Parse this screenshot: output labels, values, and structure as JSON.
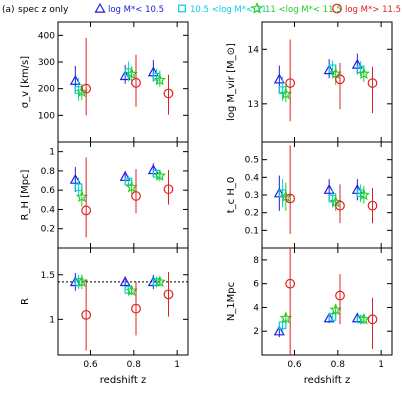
{
  "header": {
    "tag": "(a)",
    "title": "spec z only"
  },
  "legend": [
    {
      "label": "log M*< 10.5",
      "color": "#2020e0",
      "marker": "triangle"
    },
    {
      "label": "10.5 <log M*< 11",
      "color": "#00d0e0",
      "marker": "square"
    },
    {
      "label": "11 <log M*< 11.5",
      "color": "#20d020",
      "marker": "star"
    },
    {
      "label": "log M*> 11.5",
      "color": "#e02020",
      "marker": "circle"
    }
  ],
  "chart_data": [
    {
      "type": "scatter",
      "panel": "sigma_v",
      "xlabel": "",
      "ylabel": "σ_v [km/s]",
      "xlim": [
        0.45,
        1.05
      ],
      "ylim": [
        0,
        450
      ],
      "yticks": [
        100,
        200,
        300,
        400
      ],
      "series": [
        {
          "name": "log M*< 10.5",
          "x": [
            0.53,
            0.76,
            0.89
          ],
          "y": [
            230,
            248,
            262
          ],
          "err_lo": [
            45,
            30,
            35
          ],
          "err_hi": [
            55,
            40,
            45
          ]
        },
        {
          "name": "10.5 <log M*< 11",
          "x": [
            0.545,
            0.775,
            0.905
          ],
          "y": [
            195,
            262,
            245
          ],
          "err_lo": [
            40,
            35,
            30
          ],
          "err_hi": [
            45,
            40,
            30
          ]
        },
        {
          "name": "11 <log M*< 11.5",
          "x": [
            0.56,
            0.79,
            0.92
          ],
          "y": [
            188,
            255,
            232
          ],
          "err_lo": [
            30,
            40,
            25
          ],
          "err_hi": [
            30,
            30,
            35
          ]
        },
        {
          "name": "log M*> 11.5",
          "x": [
            0.58,
            0.81,
            0.96
          ],
          "y": [
            200,
            222,
            182
          ],
          "err_lo": [
            100,
            90,
            80
          ],
          "err_hi": [
            190,
            105,
            70
          ]
        }
      ]
    },
    {
      "type": "scatter",
      "panel": "log_Mvir",
      "xlabel": "",
      "ylabel": "log M_vir [M_⊙]",
      "xlim": [
        0.45,
        1.05
      ],
      "ylim": [
        12.3,
        14.5
      ],
      "yticks": [
        13,
        14
      ],
      "series": [
        {
          "name": "log M*< 10.5",
          "x": [
            0.53,
            0.76,
            0.89
          ],
          "y": [
            13.45,
            13.62,
            13.72
          ],
          "err_lo": [
            0.25,
            0.15,
            0.18
          ],
          "err_hi": [
            0.25,
            0.2,
            0.2
          ]
        },
        {
          "name": "10.5 <log M*< 11",
          "x": [
            0.545,
            0.775,
            0.905
          ],
          "y": [
            13.25,
            13.65,
            13.63
          ],
          "err_lo": [
            0.2,
            0.15,
            0.12
          ],
          "err_hi": [
            0.25,
            0.15,
            0.15
          ]
        },
        {
          "name": "11 <log M*< 11.5",
          "x": [
            0.56,
            0.79,
            0.92
          ],
          "y": [
            13.18,
            13.55,
            13.55
          ],
          "err_lo": [
            0.15,
            0.2,
            0.15
          ],
          "err_hi": [
            0.18,
            0.15,
            0.15
          ]
        },
        {
          "name": "log M*> 11.5",
          "x": [
            0.58,
            0.81,
            0.96
          ],
          "y": [
            13.38,
            13.45,
            13.38
          ],
          "err_lo": [
            0.7,
            0.55,
            0.55
          ],
          "err_hi": [
            0.8,
            0.3,
            0.3
          ]
        }
      ]
    },
    {
      "type": "scatter",
      "panel": "R_H",
      "xlabel": "",
      "ylabel": "R_H [Mpc]",
      "xlim": [
        0.45,
        1.05
      ],
      "ylim": [
        0,
        1.1
      ],
      "yticks": [
        0.2,
        0.4,
        0.6,
        0.8,
        1
      ],
      "series": [
        {
          "name": "log M*< 10.5",
          "x": [
            0.53,
            0.76,
            0.89
          ],
          "y": [
            0.71,
            0.74,
            0.81
          ],
          "err_lo": [
            0.13,
            0.06,
            0.07
          ],
          "err_hi": [
            0.13,
            0.06,
            0.07
          ]
        },
        {
          "name": "10.5 <log M*< 11",
          "x": [
            0.545,
            0.775,
            0.905
          ],
          "y": [
            0.63,
            0.69,
            0.77
          ],
          "err_lo": [
            0.1,
            0.06,
            0.05
          ],
          "err_hi": [
            0.1,
            0.06,
            0.05
          ]
        },
        {
          "name": "11 <log M*< 11.5",
          "x": [
            0.56,
            0.79,
            0.92
          ],
          "y": [
            0.53,
            0.63,
            0.75
          ],
          "err_lo": [
            0.1,
            0.07,
            0.06
          ],
          "err_hi": [
            0.1,
            0.07,
            0.06
          ]
        },
        {
          "name": "log M*> 11.5",
          "x": [
            0.58,
            0.81,
            0.96
          ],
          "y": [
            0.39,
            0.54,
            0.61
          ],
          "err_lo": [
            0.28,
            0.18,
            0.16
          ],
          "err_hi": [
            0.55,
            0.28,
            0.2
          ]
        }
      ]
    },
    {
      "type": "scatter",
      "panel": "t_c_H0",
      "xlabel": "",
      "ylabel": "t_c H_0",
      "xlim": [
        0.45,
        1.05
      ],
      "ylim": [
        0,
        0.6
      ],
      "yticks": [
        0.1,
        0.2,
        0.3,
        0.4,
        0.5
      ],
      "series": [
        {
          "name": "log M*< 10.5",
          "x": [
            0.53,
            0.76,
            0.89
          ],
          "y": [
            0.31,
            0.33,
            0.33
          ],
          "err_lo": [
            0.1,
            0.06,
            0.06
          ],
          "err_hi": [
            0.1,
            0.06,
            0.06
          ]
        },
        {
          "name": "10.5 <log M*< 11",
          "x": [
            0.545,
            0.775,
            0.905
          ],
          "y": [
            0.31,
            0.28,
            0.31
          ],
          "err_lo": [
            0.08,
            0.05,
            0.05
          ],
          "err_hi": [
            0.08,
            0.05,
            0.05
          ]
        },
        {
          "name": "11 <log M*< 11.5",
          "x": [
            0.56,
            0.79,
            0.92
          ],
          "y": [
            0.29,
            0.26,
            0.3
          ],
          "err_lo": [
            0.08,
            0.05,
            0.05
          ],
          "err_hi": [
            0.08,
            0.05,
            0.05
          ]
        },
        {
          "name": "log M*> 11.5",
          "x": [
            0.58,
            0.81,
            0.96
          ],
          "y": [
            0.28,
            0.24,
            0.24
          ],
          "err_lo": [
            0.2,
            0.1,
            0.1
          ],
          "err_hi": [
            0.3,
            0.12,
            0.1
          ]
        }
      ]
    },
    {
      "type": "scatter",
      "panel": "R",
      "xlabel": "redshift z",
      "ylabel": "R",
      "xlim": [
        0.45,
        1.05
      ],
      "ylim": [
        0.6,
        1.8
      ],
      "yticks": [
        1,
        1.5
      ],
      "xticks": [
        0.6,
        0.8,
        1
      ],
      "reference_line": 1.42,
      "series": [
        {
          "name": "log M*< 10.5",
          "x": [
            0.53,
            0.76,
            0.89
          ],
          "y": [
            1.42,
            1.42,
            1.42
          ],
          "err_lo": [
            0.1,
            0.06,
            0.08
          ],
          "err_hi": [
            0.1,
            0.06,
            0.08
          ]
        },
        {
          "name": "10.5 <log M*< 11",
          "x": [
            0.545,
            0.775,
            0.905
          ],
          "y": [
            1.42,
            1.33,
            1.42
          ],
          "err_lo": [
            0.08,
            0.05,
            0.06
          ],
          "err_hi": [
            0.08,
            0.05,
            0.06
          ]
        },
        {
          "name": "11 <log M*< 11.5",
          "x": [
            0.56,
            0.79,
            0.92
          ],
          "y": [
            1.42,
            1.32,
            1.42
          ],
          "err_lo": [
            0.08,
            0.05,
            0.05
          ],
          "err_hi": [
            0.08,
            0.05,
            0.05
          ]
        },
        {
          "name": "log M*> 11.5",
          "x": [
            0.58,
            0.81,
            0.96
          ],
          "y": [
            1.05,
            1.12,
            1.28
          ],
          "err_lo": [
            0.4,
            0.3,
            0.25
          ],
          "err_hi": [
            0.4,
            0.3,
            0.25
          ]
        }
      ]
    },
    {
      "type": "scatter",
      "panel": "N_1Mpc",
      "xlabel": "redshift z",
      "ylabel": "N_1Mpc",
      "xlim": [
        0.45,
        1.05
      ],
      "ylim": [
        0,
        9
      ],
      "yticks": [
        2,
        4,
        6,
        8
      ],
      "xticks": [
        0.6,
        0.8,
        1
      ],
      "series": [
        {
          "name": "log M*< 10.5",
          "x": [
            0.53,
            0.76,
            0.89
          ],
          "y": [
            2,
            3.1,
            3.1
          ],
          "err_lo": [
            0.5,
            0.4,
            0.4
          ],
          "err_hi": [
            0.5,
            0.4,
            0.4
          ]
        },
        {
          "name": "10.5 <log M*< 11",
          "x": [
            0.545,
            0.775,
            0.905
          ],
          "y": [
            2.5,
            3.2,
            3
          ],
          "err_lo": [
            0.5,
            0.4,
            0.4
          ],
          "err_hi": [
            0.5,
            0.4,
            0.4
          ]
        },
        {
          "name": "11 <log M*< 11.5",
          "x": [
            0.56,
            0.79,
            0.92
          ],
          "y": [
            3.1,
            3.8,
            3
          ],
          "err_lo": [
            0.5,
            0.5,
            0.4
          ],
          "err_hi": [
            0.5,
            0.5,
            0.4
          ]
        },
        {
          "name": "log M*> 11.5",
          "x": [
            0.58,
            0.81,
            0.96
          ],
          "y": [
            6,
            5,
            3
          ],
          "err_lo": [
            6,
            2.4,
            2.5
          ],
          "err_hi": [
            3,
            1.8,
            1.8
          ]
        }
      ]
    }
  ]
}
